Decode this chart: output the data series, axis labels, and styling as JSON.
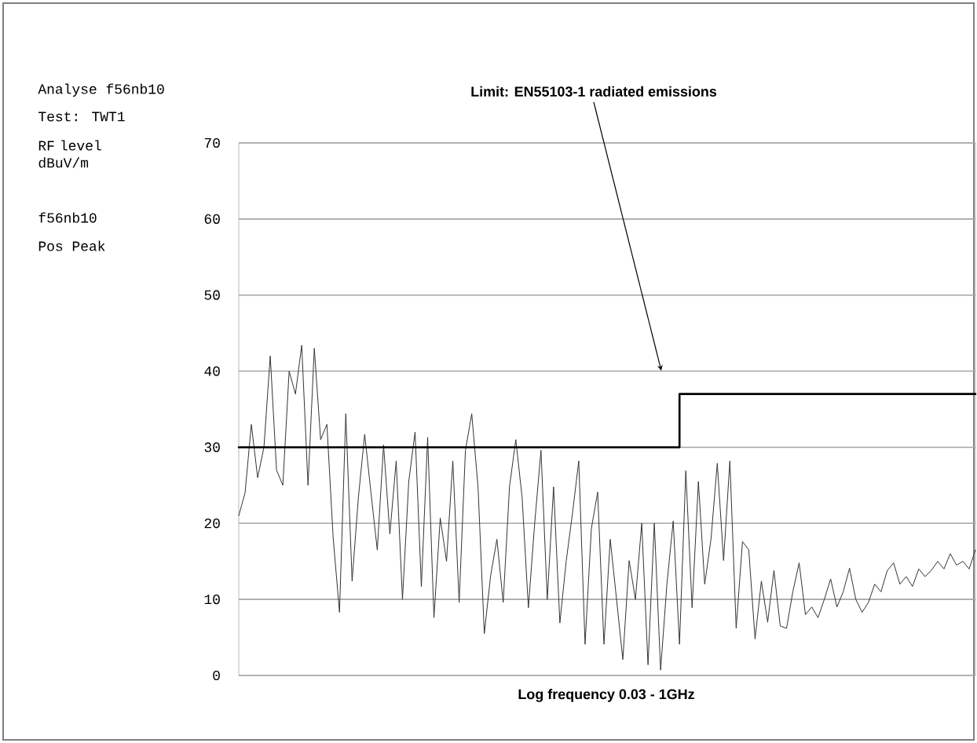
{
  "chart_data": {
    "type": "line",
    "xlabel": "Log frequency 0.03 - 1GHz",
    "annotations": [
      "Analyse f56nb10",
      "Test: TWT1",
      "RF level dBuV/m",
      "f56nb10",
      "Pos Peak",
      "Limit: EN55103-1 radiated emissions"
    ],
    "grid": "y",
    "categories": [
      null,
      null,
      null,
      null,
      null,
      null,
      null,
      null,
      null,
      null,
      null,
      null,
      null,
      null,
      null,
      null,
      null,
      null,
      null,
      null,
      null,
      null,
      null,
      null,
      null,
      null,
      null,
      null,
      null,
      null,
      null,
      null,
      null,
      null,
      null,
      null,
      null,
      null,
      null,
      null,
      null,
      null,
      null,
      null,
      null,
      null,
      null,
      null,
      null,
      null,
      null,
      null,
      null,
      null,
      null,
      null,
      null,
      null,
      null,
      null,
      null,
      null,
      null,
      null,
      null,
      null,
      null,
      null,
      null,
      null,
      null,
      null,
      null,
      null,
      null,
      null,
      null,
      null,
      null,
      null,
      null,
      null,
      null,
      null,
      null,
      null,
      null,
      null,
      null,
      null,
      null,
      null,
      null,
      null,
      null,
      null,
      null,
      null,
      null,
      null,
      null,
      null,
      null,
      null,
      null,
      null,
      null,
      null,
      null,
      null,
      null,
      null,
      null,
      null,
      null,
      null,
      null,
      null
    ],
    "ylim": [
      0,
      70
    ],
    "yticks": [
      0,
      10,
      20,
      30,
      40,
      50,
      60,
      70
    ],
    "series": [
      {
        "color": "#333333",
        "values": [
          21,
          24,
          33,
          26,
          30,
          42,
          27,
          25,
          40,
          37,
          43.4,
          25,
          43,
          31,
          33,
          18,
          8.3,
          34.4,
          12.4,
          23.4,
          31.7,
          24,
          16.5,
          30.3,
          18.6,
          28.2,
          10,
          25.5,
          32,
          11.7,
          31.3,
          7.6,
          20.7,
          15,
          28.2,
          9.6,
          29.6,
          34.4,
          24.8,
          5.5,
          13.1,
          17.9,
          9.6,
          24.8,
          31,
          23.4,
          8.9,
          20,
          29.6,
          10,
          24.8,
          6.9,
          15,
          21.3,
          28.2,
          4.1,
          19.3,
          24.1,
          4.1,
          17.9,
          10,
          2.1,
          15.1,
          10,
          20,
          1.4,
          20,
          0.7,
          12,
          20.3,
          4.1,
          26.9,
          8.9,
          25.5,
          12,
          17.9,
          27.9,
          15.1,
          28.2,
          6.2,
          17.6,
          16.5,
          4.8,
          12.4,
          7,
          13.8,
          6.5,
          6.2,
          11,
          14.8,
          8,
          9,
          7.6,
          10,
          12.7,
          9,
          11,
          14.1,
          10,
          8.3,
          9.6,
          12,
          11,
          13.8,
          14.8,
          12,
          13,
          11.7,
          14,
          13,
          13.8,
          15,
          14,
          16,
          14.5,
          15,
          14,
          16.5
        ]
      },
      {
        "type": "step",
        "color": "#000000",
        "values": [
          30,
          30,
          30,
          30,
          30,
          30,
          30,
          30,
          30,
          30,
          30,
          30,
          30,
          30,
          30,
          30,
          30,
          30,
          30,
          30,
          30,
          30,
          30,
          30,
          30,
          30,
          30,
          30,
          30,
          30,
          30,
          30,
          30,
          30,
          30,
          30,
          30,
          30,
          30,
          30,
          30,
          30,
          30,
          30,
          30,
          30,
          30,
          30,
          30,
          30,
          30,
          30,
          30,
          30,
          30,
          30,
          30,
          30,
          30,
          30,
          30,
          30,
          30,
          30,
          30,
          30,
          30,
          30,
          30,
          30,
          37,
          37,
          37,
          37,
          37,
          37,
          37,
          37,
          37,
          37,
          37,
          37,
          37,
          37,
          37,
          37,
          37,
          37,
          37,
          37,
          37,
          37,
          37,
          37,
          37,
          37,
          37,
          37,
          37,
          37,
          37,
          37,
          37,
          37,
          37,
          37,
          37,
          37,
          37,
          37,
          37,
          37,
          37,
          37,
          37,
          37,
          37,
          37
        ]
      }
    ]
  }
}
